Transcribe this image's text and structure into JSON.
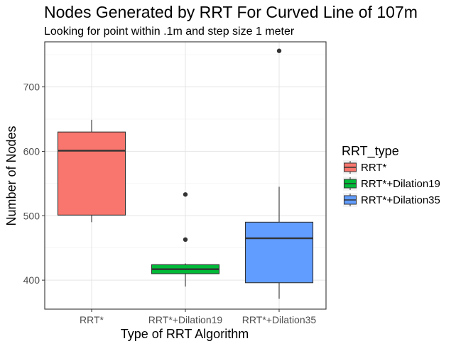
{
  "chart_data": {
    "type": "box",
    "title": "Nodes Generated by RRT For Curved Line of 107m",
    "subtitle": "Looking for point within .1m and step size 1 meter",
    "xlabel": "Type of RRT Algorithm",
    "ylabel": "Number of Nodes",
    "ylim": [
      355,
      770
    ],
    "yticks": [
      400,
      500,
      600,
      700
    ],
    "y_tick_labels": [
      "400",
      "500",
      "600",
      "700"
    ],
    "grid": true,
    "legend": {
      "title": "RRT_type",
      "placement": "right",
      "entries": [
        "RRT*",
        "RRT*+Dilation19",
        "RRT*+Dilation35"
      ]
    },
    "categories": [
      "RRT*",
      "RRT*+Dilation19",
      "RRT*+Dilation35"
    ],
    "colors": [
      "#F8766D",
      "#00BA38",
      "#619CFF"
    ],
    "boxes": [
      {
        "category": "RRT*",
        "min": 490,
        "q1": 501,
        "median": 601,
        "q3": 630,
        "max": 649,
        "outliers": []
      },
      {
        "category": "RRT*+Dilation19",
        "min": 390,
        "q1": 410,
        "median": 417,
        "q3": 424,
        "max": 426,
        "outliers": [
          463,
          533
        ]
      },
      {
        "category": "RRT*+Dilation35",
        "min": 371,
        "q1": 396,
        "median": 465,
        "q3": 490,
        "max": 545,
        "outliers": [
          756
        ]
      }
    ]
  }
}
